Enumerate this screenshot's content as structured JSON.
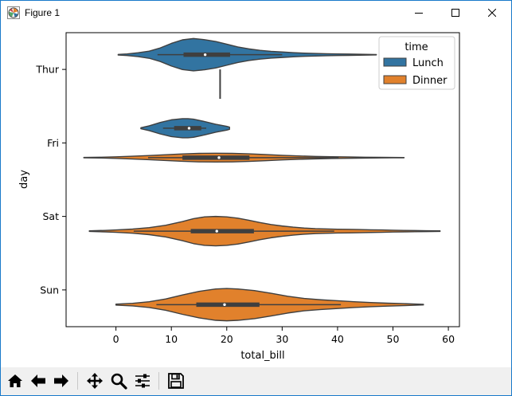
{
  "window": {
    "title": "Figure 1",
    "icons": {
      "app": "matplotlib-figure-icon",
      "minimize": "minimize-icon",
      "maximize": "maximize-icon",
      "close": "close-icon"
    }
  },
  "toolbar": {
    "items": [
      {
        "name": "home",
        "icon": "home-icon"
      },
      {
        "name": "back",
        "icon": "arrow-left-icon"
      },
      {
        "name": "forward",
        "icon": "arrow-right-icon"
      },
      {
        "name": "pan",
        "icon": "move-icon"
      },
      {
        "name": "zoom",
        "icon": "magnifier-icon"
      },
      {
        "name": "configure-subplots",
        "icon": "sliders-icon"
      },
      {
        "name": "save",
        "icon": "floppy-disk-icon"
      }
    ]
  },
  "chart_data": {
    "type": "violin",
    "orientation": "horizontal",
    "title": "",
    "xlabel": "total_bill",
    "ylabel": "day",
    "xlim": [
      -9,
      62
    ],
    "xticks": [
      0,
      10,
      20,
      30,
      40,
      50,
      60
    ],
    "categories": [
      "Thur",
      "Fri",
      "Sat",
      "Sun"
    ],
    "legend": {
      "title": "time",
      "placement": "top-right",
      "entries": [
        {
          "name": "Lunch",
          "color": "#3274a1"
        },
        {
          "name": "Dinner",
          "color": "#e1812c"
        }
      ]
    },
    "grid": false,
    "series": [
      {
        "name": "Lunch",
        "color": "#3274a1",
        "violins": [
          {
            "category": "Thur",
            "range": [
              0.4,
              47
            ],
            "q1": 12.2,
            "median": 16.1,
            "q3": 20.6,
            "whisker_low": 7.5,
            "whisker_high": 30,
            "max_halfwidth": 0.22,
            "density": [
              [
                0.4,
                0.02
              ],
              [
                2,
                0.05
              ],
              [
                4,
                0.12
              ],
              [
                6,
                0.22
              ],
              [
                8,
                0.42
              ],
              [
                10,
                0.7
              ],
              [
                12,
                0.92
              ],
              [
                14,
                1.0
              ],
              [
                16,
                0.93
              ],
              [
                18,
                0.82
              ],
              [
                20,
                0.65
              ],
              [
                22,
                0.48
              ],
              [
                24,
                0.36
              ],
              [
                26,
                0.27
              ],
              [
                28,
                0.21
              ],
              [
                30,
                0.17
              ],
              [
                32,
                0.13
              ],
              [
                34,
                0.1
              ],
              [
                36,
                0.08
              ],
              [
                38,
                0.06
              ],
              [
                40,
                0.05
              ],
              [
                42,
                0.04
              ],
              [
                44,
                0.03
              ],
              [
                46,
                0.02
              ],
              [
                47,
                0.01
              ]
            ]
          },
          {
            "category": "Fri",
            "range": [
              4.5,
              20.5
            ],
            "q1": 10.5,
            "median": 13.2,
            "q3": 15.4,
            "whisker_low": 8.5,
            "whisker_high": 16.3,
            "max_halfwidth": 0.13,
            "density": [
              [
                4.5,
                0.05
              ],
              [
                6,
                0.25
              ],
              [
                8,
                0.6
              ],
              [
                10,
                0.88
              ],
              [
                12,
                1.0
              ],
              [
                13,
                1.0
              ],
              [
                14,
                0.95
              ],
              [
                16,
                0.7
              ],
              [
                18,
                0.42
              ],
              [
                20,
                0.2
              ],
              [
                20.5,
                0.12
              ]
            ]
          }
        ]
      },
      {
        "name": "Dinner",
        "color": "#e1812c",
        "violins": [
          {
            "category": "Thur",
            "range": [
              18.8,
              18.8
            ],
            "median": 18.8,
            "single_value": true
          },
          {
            "category": "Fri",
            "range": [
              -5.8,
              52
            ],
            "q1": 12,
            "median": 18.6,
            "q3": 24.1,
            "whisker_low": 5.8,
            "whisker_high": 40.2,
            "max_halfwidth": 0.06,
            "density": [
              [
                -5.8,
                0.04
              ],
              [
                -3,
                0.08
              ],
              [
                0,
                0.18
              ],
              [
                3,
                0.32
              ],
              [
                6,
                0.48
              ],
              [
                9,
                0.66
              ],
              [
                12,
                0.84
              ],
              [
                15,
                0.96
              ],
              [
                18,
                1.0
              ],
              [
                21,
                0.96
              ],
              [
                24,
                0.86
              ],
              [
                27,
                0.7
              ],
              [
                30,
                0.52
              ],
              [
                33,
                0.38
              ],
              [
                36,
                0.28
              ],
              [
                39,
                0.2
              ],
              [
                42,
                0.15
              ],
              [
                45,
                0.1
              ],
              [
                48,
                0.07
              ],
              [
                50,
                0.05
              ],
              [
                52,
                0.03
              ]
            ]
          },
          {
            "category": "Sat",
            "range": [
              -4.8,
              58.5
            ],
            "q1": 13.5,
            "median": 18.2,
            "q3": 24.9,
            "whisker_low": 3.2,
            "whisker_high": 39.4,
            "max_halfwidth": 0.2,
            "density": [
              [
                -4.8,
                0.02
              ],
              [
                -2,
                0.05
              ],
              [
                0,
                0.08
              ],
              [
                3,
                0.14
              ],
              [
                6,
                0.24
              ],
              [
                9,
                0.4
              ],
              [
                12,
                0.65
              ],
              [
                14,
                0.85
              ],
              [
                16,
                0.97
              ],
              [
                18,
                1.0
              ],
              [
                20,
                0.97
              ],
              [
                22,
                0.88
              ],
              [
                24,
                0.74
              ],
              [
                26,
                0.58
              ],
              [
                28,
                0.45
              ],
              [
                30,
                0.35
              ],
              [
                32,
                0.27
              ],
              [
                34,
                0.21
              ],
              [
                36,
                0.17
              ],
              [
                38,
                0.15
              ],
              [
                40,
                0.13
              ],
              [
                42,
                0.12
              ],
              [
                44,
                0.11
              ],
              [
                46,
                0.09
              ],
              [
                48,
                0.08
              ],
              [
                50,
                0.06
              ],
              [
                52,
                0.05
              ],
              [
                54,
                0.04
              ],
              [
                56,
                0.03
              ],
              [
                58.5,
                0.02
              ]
            ]
          },
          {
            "category": "Sun",
            "range": [
              0,
              55.5
            ],
            "q1": 14.5,
            "median": 19.6,
            "q3": 25.9,
            "whisker_low": 7.3,
            "whisker_high": 40.6,
            "max_halfwidth": 0.22,
            "density": [
              [
                0,
                0.03
              ],
              [
                3,
                0.08
              ],
              [
                6,
                0.18
              ],
              [
                9,
                0.35
              ],
              [
                12,
                0.6
              ],
              [
                15,
                0.82
              ],
              [
                18,
                0.97
              ],
              [
                20,
                1.0
              ],
              [
                22,
                0.97
              ],
              [
                25,
                0.87
              ],
              [
                28,
                0.7
              ],
              [
                31,
                0.52
              ],
              [
                34,
                0.38
              ],
              [
                37,
                0.3
              ],
              [
                40,
                0.24
              ],
              [
                43,
                0.18
              ],
              [
                46,
                0.13
              ],
              [
                49,
                0.09
              ],
              [
                52,
                0.06
              ],
              [
                55.5,
                0.02
              ]
            ]
          }
        ]
      }
    ]
  }
}
